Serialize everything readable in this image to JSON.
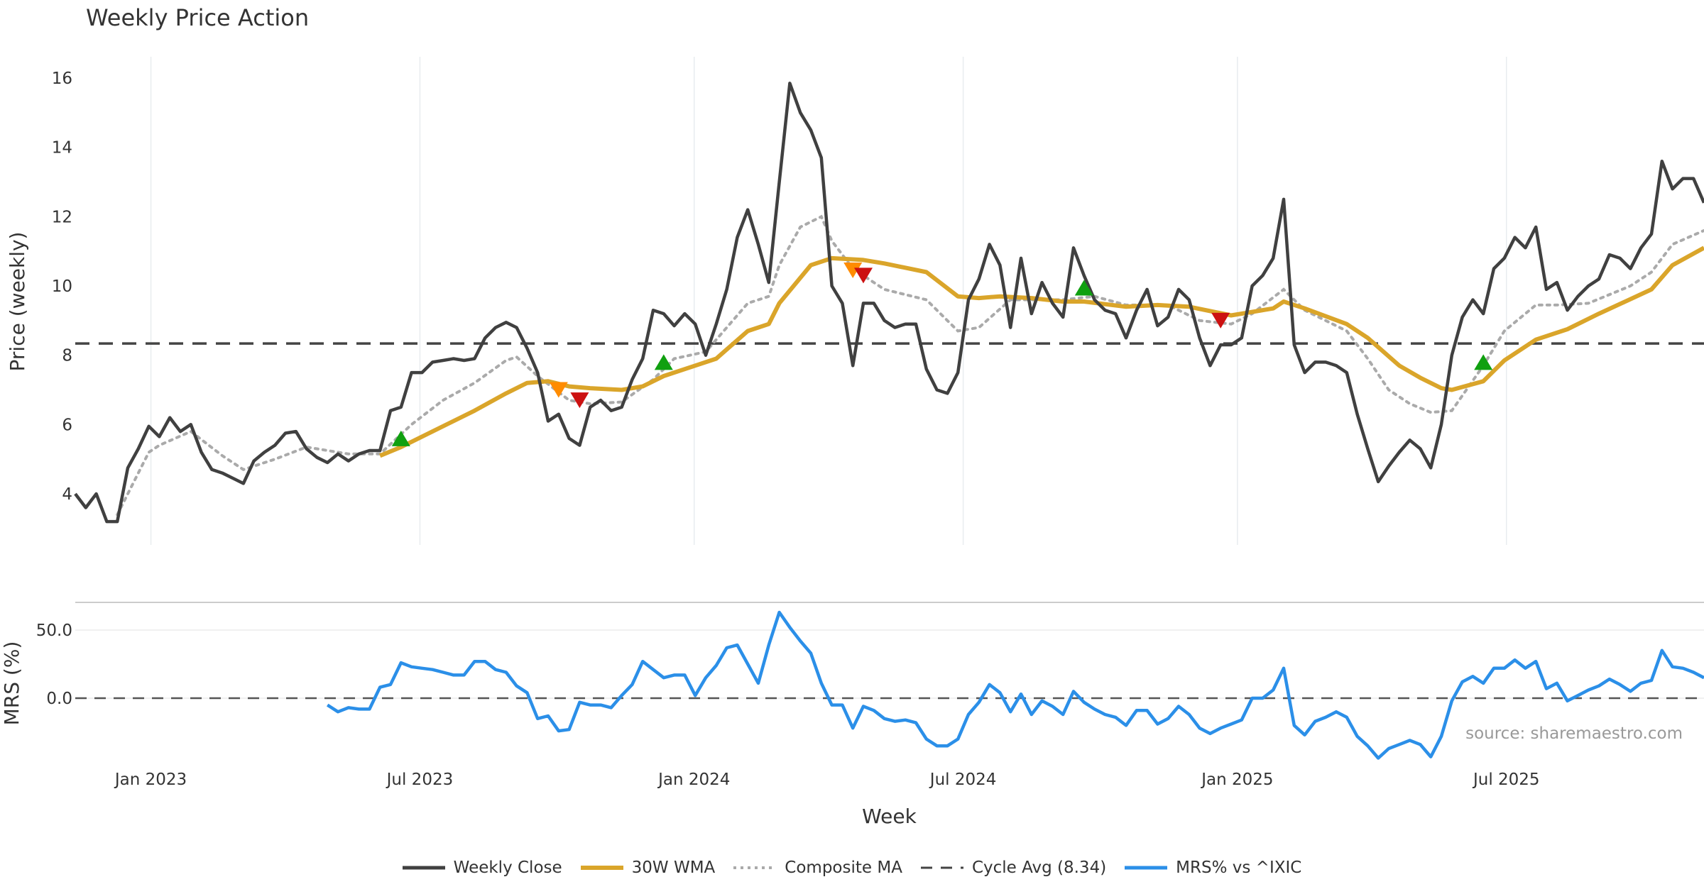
{
  "chart_data": [
    {
      "type": "line",
      "title": "Weekly Price Action",
      "xlabel": "Week",
      "ylabel": "Price (weekly)",
      "ylim": [
        2.5,
        16.7
      ],
      "y_ticks": [
        4,
        6,
        8,
        10,
        12,
        14,
        16
      ],
      "x_unit": "week index",
      "x_range": [
        0,
        155
      ],
      "x_ticks": [
        {
          "label": "Jan 2023",
          "week": 7.2
        },
        {
          "label": "Jul 2023",
          "week": 32.8
        },
        {
          "label": "Jan 2024",
          "week": 58.9
        },
        {
          "label": "Jul 2024",
          "week": 84.5
        },
        {
          "label": "Jan 2025",
          "week": 110.6
        },
        {
          "label": "Jul 2025",
          "week": 136.2
        }
      ],
      "grid": "vertical",
      "series": [
        {
          "name": "Weekly Close",
          "color": "#404040",
          "start": 0,
          "values": [
            4.0,
            3.6,
            4.0,
            3.2,
            3.2,
            4.75,
            5.3,
            5.95,
            5.65,
            6.2,
            5.8,
            6.0,
            5.2,
            4.7,
            4.6,
            4.45,
            4.3,
            4.95,
            5.2,
            5.4,
            5.75,
            5.8,
            5.3,
            5.05,
            4.9,
            5.15,
            4.95,
            5.15,
            5.25,
            5.25,
            6.4,
            6.5,
            7.5,
            7.5,
            7.8,
            7.85,
            7.9,
            7.85,
            7.9,
            8.5,
            8.8,
            8.95,
            8.8,
            8.2,
            7.5,
            6.1,
            6.3,
            5.6,
            5.4,
            6.5,
            6.7,
            6.4,
            6.5,
            7.3,
            7.9,
            9.3,
            9.2,
            8.85,
            9.2,
            8.9,
            8.0,
            8.9,
            9.9,
            11.4,
            12.2,
            11.2,
            10.1,
            13.0,
            15.85,
            15.0,
            14.5,
            13.7,
            10.0,
            9.5,
            7.7,
            9.5,
            9.5,
            9.0,
            8.8,
            8.9,
            8.9,
            7.6,
            7.0,
            6.9,
            7.5,
            9.6,
            10.2,
            11.2,
            10.6,
            8.8,
            10.8,
            9.2,
            10.1,
            9.5,
            9.1,
            11.1,
            10.3,
            9.6,
            9.3,
            9.2,
            8.5,
            9.3,
            9.9,
            8.85,
            9.1,
            9.9,
            9.6,
            8.5,
            7.7,
            8.3,
            8.3,
            8.5,
            10.0,
            10.3,
            10.8,
            12.5,
            8.3,
            7.5,
            7.8,
            7.8,
            7.7,
            7.5,
            6.3,
            5.3,
            4.35,
            4.8,
            5.2,
            5.55,
            5.3,
            4.75,
            6.0,
            8.0,
            9.1,
            9.6,
            9.2,
            10.5,
            10.8,
            11.4,
            11.1,
            11.7,
            9.9,
            10.1,
            9.3,
            9.7,
            10.0,
            10.2,
            10.9,
            10.8,
            10.5,
            11.1,
            11.5,
            13.6,
            12.8,
            13.1,
            13.1,
            12.4
          ]
        },
        {
          "name": "30W WMA",
          "color": "#DAA52A",
          "knots": [
            [
              29,
              5.1
            ],
            [
              31,
              5.35
            ],
            [
              34,
              5.8
            ],
            [
              38,
              6.4
            ],
            [
              41,
              6.9
            ],
            [
              43,
              7.2
            ],
            [
              45,
              7.25
            ],
            [
              47,
              7.1
            ],
            [
              49,
              7.05
            ],
            [
              52,
              7.0
            ],
            [
              54,
              7.1
            ],
            [
              56,
              7.4
            ],
            [
              59,
              7.7
            ],
            [
              61,
              7.9
            ],
            [
              64,
              8.7
            ],
            [
              66,
              8.9
            ],
            [
              67,
              9.5
            ],
            [
              70,
              10.6
            ],
            [
              72,
              10.8
            ],
            [
              75,
              10.75
            ],
            [
              77,
              10.65
            ],
            [
              81,
              10.4
            ],
            [
              84,
              9.7
            ],
            [
              86,
              9.65
            ],
            [
              88,
              9.7
            ],
            [
              91,
              9.65
            ],
            [
              94,
              9.55
            ],
            [
              96,
              9.55
            ],
            [
              100,
              9.4
            ],
            [
              103,
              9.45
            ],
            [
              106,
              9.4
            ],
            [
              110,
              9.15
            ],
            [
              114,
              9.35
            ],
            [
              115,
              9.55
            ],
            [
              117,
              9.35
            ],
            [
              121,
              8.9
            ],
            [
              123,
              8.5
            ],
            [
              126,
              7.7
            ],
            [
              128,
              7.35
            ],
            [
              130,
              7.05
            ],
            [
              131,
              7.0
            ],
            [
              134,
              7.25
            ],
            [
              136,
              7.85
            ],
            [
              139,
              8.45
            ],
            [
              142,
              8.75
            ],
            [
              145,
              9.2
            ],
            [
              150,
              9.9
            ],
            [
              152,
              10.6
            ],
            [
              155,
              11.1
            ]
          ]
        },
        {
          "name": "Composite MA",
          "color": "#AAAAAA",
          "knots": [
            [
              4,
              3.4
            ],
            [
              6,
              4.6
            ],
            [
              7,
              5.2
            ],
            [
              8,
              5.4
            ],
            [
              11,
              5.8
            ],
            [
              14,
              5.1
            ],
            [
              16,
              4.7
            ],
            [
              19,
              5.0
            ],
            [
              22,
              5.35
            ],
            [
              26,
              5.15
            ],
            [
              29,
              5.15
            ],
            [
              32,
              6.0
            ],
            [
              35,
              6.7
            ],
            [
              38,
              7.2
            ],
            [
              41,
              7.85
            ],
            [
              42,
              7.95
            ],
            [
              44,
              7.4
            ],
            [
              47,
              6.7
            ],
            [
              49,
              6.6
            ],
            [
              52,
              6.65
            ],
            [
              55,
              7.3
            ],
            [
              57,
              7.9
            ],
            [
              60,
              8.1
            ],
            [
              62,
              8.8
            ],
            [
              64,
              9.5
            ],
            [
              66,
              9.7
            ],
            [
              67,
              10.6
            ],
            [
              69,
              11.7
            ],
            [
              71,
              12.0
            ],
            [
              72,
              11.3
            ],
            [
              74,
              10.5
            ],
            [
              77,
              9.9
            ],
            [
              81,
              9.6
            ],
            [
              84,
              8.7
            ],
            [
              86,
              8.8
            ],
            [
              89,
              9.6
            ],
            [
              92,
              9.6
            ],
            [
              94,
              9.6
            ],
            [
              97,
              9.7
            ],
            [
              100,
              9.45
            ],
            [
              104,
              9.45
            ],
            [
              107,
              9.0
            ],
            [
              110,
              8.9
            ],
            [
              112,
              9.2
            ],
            [
              115,
              9.9
            ],
            [
              117,
              9.3
            ],
            [
              121,
              8.7
            ],
            [
              123,
              7.9
            ],
            [
              125,
              7.0
            ],
            [
              127,
              6.6
            ],
            [
              129,
              6.35
            ],
            [
              131,
              6.4
            ],
            [
              134,
              7.7
            ],
            [
              136,
              8.7
            ],
            [
              139,
              9.45
            ],
            [
              141,
              9.45
            ],
            [
              144,
              9.5
            ],
            [
              148,
              10.0
            ],
            [
              150,
              10.4
            ],
            [
              152,
              11.2
            ],
            [
              155,
              11.6
            ]
          ]
        },
        {
          "name": "Cycle Avg (8.34)",
          "color": "#444444",
          "value": 8.34
        }
      ],
      "signals": [
        {
          "type": "buy",
          "color": "#10A010",
          "week": 31,
          "price": 5.6
        },
        {
          "type": "buy",
          "color": "#10A010",
          "week": 56,
          "price": 7.8
        },
        {
          "type": "buy",
          "color": "#10A010",
          "week": 96,
          "price": 9.95
        },
        {
          "type": "buy",
          "color": "#10A010",
          "week": 134,
          "price": 7.8
        },
        {
          "type": "warn",
          "color": "#FF8C00",
          "week": 46,
          "price": 7.0
        },
        {
          "type": "warn",
          "color": "#FF8C00",
          "week": 74,
          "price": 10.45
        },
        {
          "type": "sell",
          "color": "#CC1111",
          "week": 48,
          "price": 6.7
        },
        {
          "type": "sell",
          "color": "#CC1111",
          "week": 75,
          "price": 10.3
        },
        {
          "type": "sell",
          "color": "#CC1111",
          "week": 109,
          "price": 9.0
        }
      ]
    },
    {
      "type": "line",
      "ylabel": "MRS (%)",
      "ylim": [
        -60,
        70
      ],
      "y_ticks": [
        {
          "value": 50,
          "label": "50.0"
        },
        {
          "value": 0,
          "label": "0.0"
        }
      ],
      "zero_line": "dashed",
      "series": [
        {
          "name": "MRS% vs ^IXIC",
          "color": "#2B8FE8",
          "start": 24,
          "values": [
            -5,
            -10,
            -7,
            -8,
            -8,
            8,
            10,
            26,
            23,
            22,
            21,
            19,
            17,
            17,
            27,
            27,
            21,
            19,
            9,
            4,
            -15,
            -13,
            -24,
            -23,
            -3,
            -5,
            -5,
            -7,
            2,
            10,
            27,
            21,
            15,
            17,
            17,
            2,
            15,
            24,
            37,
            39,
            25,
            11,
            39,
            63,
            52,
            42,
            33,
            11,
            -5,
            -5,
            -22,
            -6,
            -9,
            -15,
            -17,
            -16,
            -18,
            -30,
            -35,
            -35,
            -30,
            -12,
            -3,
            10,
            4,
            -10,
            3,
            -12,
            -2,
            -6,
            -12,
            5,
            -3,
            -8,
            -12,
            -14,
            -20,
            -9,
            -9,
            -19,
            -15,
            -6,
            -12,
            -22,
            -26,
            -22,
            -19,
            -16,
            0,
            0,
            6,
            22,
            -20,
            -27,
            -17,
            -14,
            -10,
            -14,
            -28,
            -35,
            -44,
            -37,
            -34,
            -31,
            -34,
            -43,
            -28,
            -2,
            12,
            16,
            11,
            22,
            22,
            28,
            22,
            27,
            7,
            11,
            -2,
            2,
            6,
            9,
            14,
            10,
            5,
            11,
            13,
            35,
            23,
            22,
            19,
            15
          ]
        }
      ]
    }
  ],
  "source": "source: sharemaestro.com",
  "legend": [
    "Weekly Close",
    "30W WMA",
    "Composite MA",
    "Cycle Avg (8.34)",
    "MRS% vs ^IXIC"
  ]
}
